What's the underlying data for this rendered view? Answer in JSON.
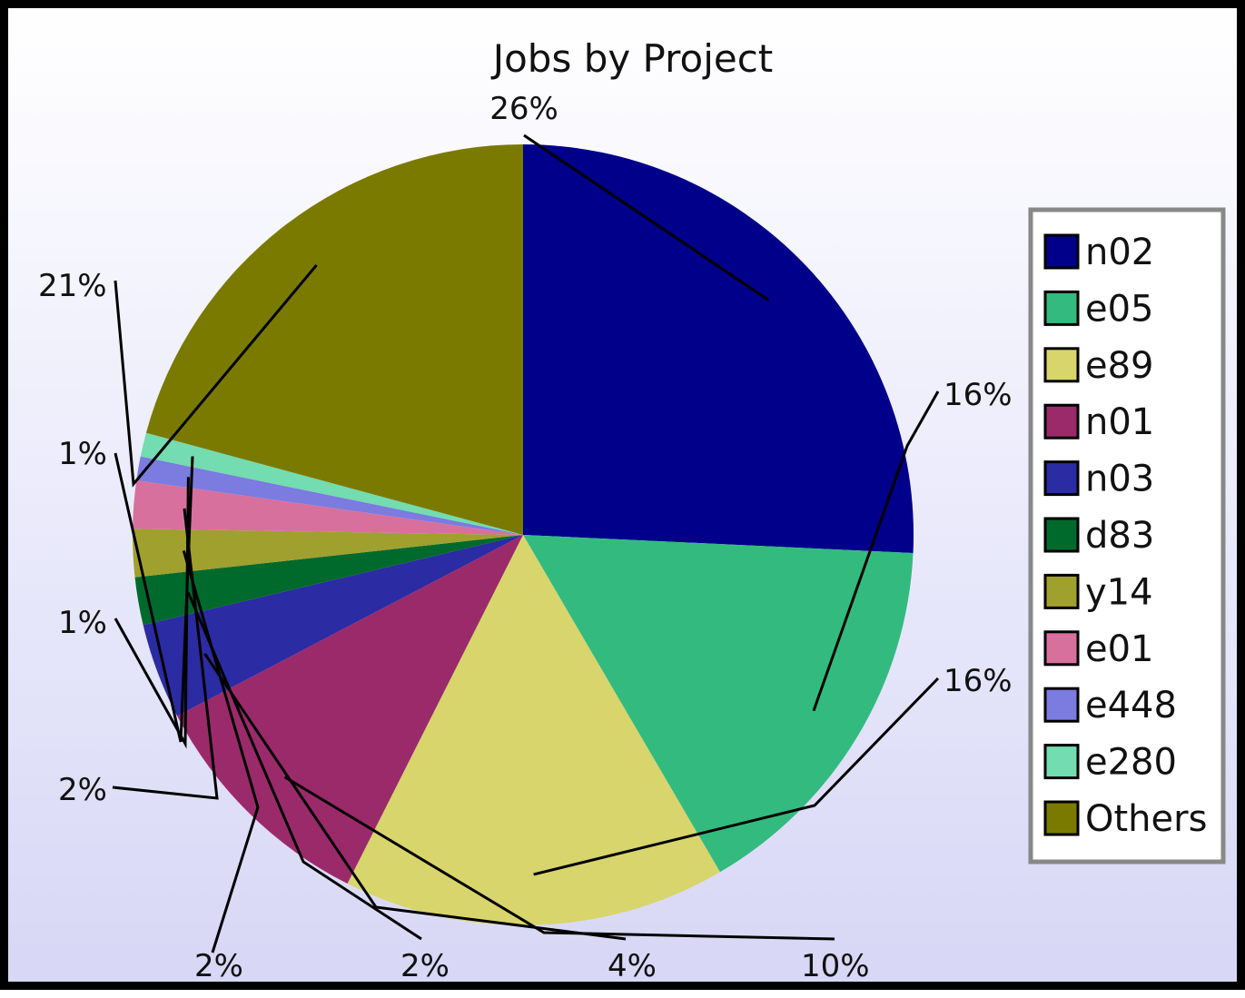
{
  "chart_data": {
    "type": "pie",
    "title": "Jobs by Project",
    "legend_position": "right",
    "slices": [
      {
        "name": "n02",
        "value": 26,
        "label": "26%",
        "color": "#00008b"
      },
      {
        "name": "e05",
        "value": 16,
        "label": "16%",
        "color": "#33bb7f"
      },
      {
        "name": "e89",
        "value": 16,
        "label": "16%",
        "color": "#d8d56c"
      },
      {
        "name": "n01",
        "value": 10,
        "label": "10%",
        "color": "#9b2a6b"
      },
      {
        "name": "n03",
        "value": 4,
        "label": "4%",
        "color": "#2b2ba3"
      },
      {
        "name": "d83",
        "value": 2,
        "label": "2%",
        "color": "#006a2c"
      },
      {
        "name": "y14",
        "value": 2,
        "label": "2%",
        "color": "#a0a02e"
      },
      {
        "name": "e01",
        "value": 2,
        "label": "2%",
        "color": "#d8709e"
      },
      {
        "name": "e448",
        "value": 1,
        "label": "1%",
        "color": "#7b7be0"
      },
      {
        "name": "e280",
        "value": 1,
        "label": "1%",
        "color": "#73dcb0"
      },
      {
        "name": "Others",
        "value": 21,
        "label": "21%",
        "color": "#7a7a00"
      }
    ]
  }
}
